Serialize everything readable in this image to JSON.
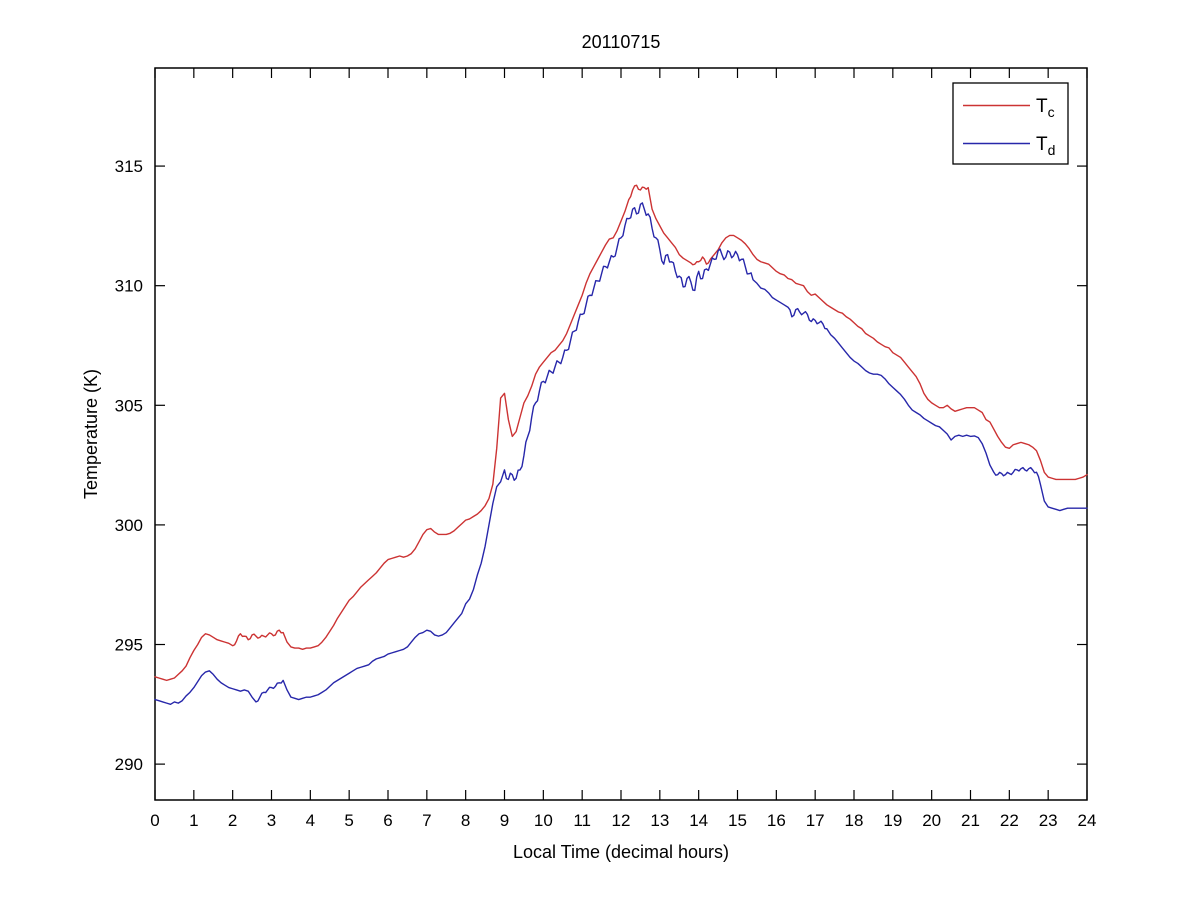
{
  "figure": {
    "background": "#ffffff",
    "axis_color": "#000000"
  },
  "chart_data": {
    "type": "line",
    "title": "20110715",
    "xlabel": "Local Time (decimal hours)",
    "ylabel": "Temperature (K)",
    "xlim": [
      0,
      24
    ],
    "ylim": [
      288.5,
      319.1
    ],
    "x_ticks": [
      0,
      1,
      2,
      3,
      4,
      5,
      6,
      7,
      8,
      9,
      10,
      11,
      12,
      13,
      14,
      15,
      16,
      17,
      18,
      19,
      20,
      21,
      22,
      23,
      24
    ],
    "y_ticks": [
      290,
      295,
      300,
      305,
      310,
      315
    ],
    "grid": false,
    "legend_position": "top-right",
    "legend": {
      "entries": [
        {
          "label_main": "T",
          "label_sub": "c",
          "series": "T_c",
          "color": "#cc3333"
        },
        {
          "label_main": "T",
          "label_sub": "d",
          "series": "T_d",
          "color": "#2727aa"
        }
      ]
    },
    "x_start": 0,
    "x_step": 0.1,
    "series": [
      {
        "name": "T_c",
        "color": "#cc3333",
        "values": [
          293.65,
          293.6,
          293.55,
          293.5,
          293.55,
          293.6,
          293.75,
          293.9,
          294.1,
          294.45,
          294.75,
          295.0,
          295.3,
          295.45,
          295.4,
          295.3,
          295.2,
          295.15,
          295.1,
          295.05,
          294.95,
          295.15,
          295.45,
          295.35,
          295.2,
          295.4,
          295.35,
          295.3,
          295.35,
          295.4,
          295.45,
          295.4,
          295.6,
          295.5,
          295.1,
          294.9,
          294.85,
          294.85,
          294.8,
          294.85,
          294.85,
          294.9,
          294.95,
          295.1,
          295.3,
          295.55,
          295.8,
          296.1,
          296.35,
          296.6,
          296.85,
          297.0,
          297.2,
          297.4,
          297.55,
          297.7,
          297.85,
          298.0,
          298.2,
          298.4,
          298.55,
          298.6,
          298.65,
          298.7,
          298.65,
          298.7,
          298.8,
          299.0,
          299.3,
          299.6,
          299.8,
          299.85,
          299.7,
          299.6,
          299.6,
          299.6,
          299.65,
          299.75,
          299.9,
          300.05,
          300.2,
          300.25,
          300.35,
          300.45,
          300.6,
          300.8,
          301.1,
          301.7,
          303.2,
          305.3,
          305.5,
          304.4,
          303.7,
          303.9,
          304.5,
          305.1,
          305.4,
          305.8,
          306.3,
          306.6,
          306.8,
          307.0,
          307.2,
          307.3,
          307.5,
          307.7,
          308.0,
          308.4,
          308.8,
          309.2,
          309.6,
          310.1,
          310.5,
          310.8,
          311.1,
          311.4,
          311.7,
          311.95,
          312.0,
          312.3,
          312.7,
          313.1,
          313.6,
          314.0,
          314.2,
          314.0,
          314.1,
          314.1,
          313.2,
          312.8,
          312.5,
          312.2,
          312.0,
          311.8,
          311.6,
          311.3,
          311.15,
          311.05,
          310.95,
          310.9,
          311.0,
          311.2,
          310.9,
          311.1,
          311.3,
          311.5,
          311.8,
          312.0,
          312.1,
          312.1,
          312.0,
          311.9,
          311.75,
          311.55,
          311.3,
          311.1,
          311.0,
          310.95,
          310.9,
          310.75,
          310.6,
          310.5,
          310.45,
          310.3,
          310.25,
          310.1,
          310.05,
          310.0,
          309.75,
          309.6,
          309.65,
          309.5,
          309.35,
          309.2,
          309.1,
          309.0,
          308.9,
          308.85,
          308.7,
          308.6,
          308.45,
          308.3,
          308.2,
          308.0,
          307.9,
          307.8,
          307.65,
          307.55,
          307.45,
          307.4,
          307.2,
          307.1,
          307.0,
          306.8,
          306.6,
          306.4,
          306.2,
          305.9,
          305.5,
          305.25,
          305.1,
          305.0,
          304.9,
          304.9,
          305.0,
          304.85,
          304.75,
          304.8,
          304.85,
          304.9,
          304.9,
          304.9,
          304.8,
          304.7,
          304.4,
          304.3,
          304.0,
          303.7,
          303.45,
          303.25,
          303.2,
          303.35,
          303.4,
          303.45,
          303.4,
          303.35,
          303.25,
          303.1,
          302.7,
          302.2,
          302.0,
          301.95,
          301.9,
          301.9,
          301.9,
          301.9,
          301.9,
          301.9,
          301.95,
          302.0,
          302.1
        ]
      },
      {
        "name": "T_d",
        "color": "#2727aa",
        "values": [
          292.7,
          292.65,
          292.6,
          292.55,
          292.5,
          292.6,
          292.55,
          292.65,
          292.85,
          293.0,
          293.2,
          293.45,
          293.7,
          293.85,
          293.9,
          293.75,
          293.55,
          293.4,
          293.3,
          293.2,
          293.15,
          293.1,
          293.05,
          293.1,
          293.05,
          292.8,
          292.6,
          292.8,
          293.0,
          293.1,
          293.2,
          293.25,
          293.4,
          293.5,
          293.1,
          292.8,
          292.75,
          292.7,
          292.75,
          292.8,
          292.8,
          292.85,
          292.9,
          293.0,
          293.1,
          293.25,
          293.4,
          293.5,
          293.6,
          293.7,
          293.8,
          293.9,
          294.0,
          294.05,
          294.1,
          294.15,
          294.3,
          294.4,
          294.45,
          294.5,
          294.6,
          294.65,
          294.7,
          294.75,
          294.8,
          294.9,
          295.1,
          295.3,
          295.45,
          295.5,
          295.6,
          295.55,
          295.4,
          295.35,
          295.4,
          295.5,
          295.7,
          295.9,
          296.1,
          296.3,
          296.7,
          296.9,
          297.3,
          297.9,
          298.4,
          299.1,
          300.0,
          300.9,
          301.6,
          301.8,
          302.3,
          301.9,
          302.1,
          301.95,
          302.3,
          302.9,
          303.7,
          304.5,
          305.1,
          305.6,
          306.0,
          306.2,
          306.4,
          306.6,
          306.8,
          307.0,
          307.3,
          307.7,
          308.1,
          308.5,
          308.8,
          309.2,
          309.6,
          309.9,
          310.2,
          310.5,
          310.8,
          311.0,
          311.2,
          311.6,
          312.0,
          312.5,
          312.8,
          313.2,
          313.0,
          313.4,
          313.2,
          313.0,
          312.4,
          312.0,
          311.5,
          310.9,
          311.3,
          311.0,
          310.6,
          310.4,
          309.95,
          310.3,
          310.15,
          309.8,
          310.6,
          310.3,
          310.7,
          310.9,
          311.1,
          311.45,
          311.3,
          311.2,
          311.4,
          311.25,
          311.3,
          311.1,
          310.8,
          310.5,
          310.25,
          310.1,
          309.9,
          309.85,
          309.7,
          309.5,
          309.4,
          309.3,
          309.2,
          309.1,
          308.7,
          309.0,
          308.9,
          308.85,
          308.8,
          308.5,
          308.55,
          308.45,
          308.4,
          308.2,
          307.95,
          307.8,
          307.6,
          307.4,
          307.2,
          307.0,
          306.85,
          306.75,
          306.6,
          306.45,
          306.35,
          306.3,
          306.3,
          306.25,
          306.1,
          305.9,
          305.75,
          305.6,
          305.45,
          305.25,
          305.0,
          304.8,
          304.7,
          304.6,
          304.45,
          304.35,
          304.25,
          304.15,
          304.1,
          303.95,
          303.8,
          303.55,
          303.7,
          303.75,
          303.7,
          303.75,
          303.7,
          303.72,
          303.65,
          303.4,
          303.0,
          302.5,
          302.2,
          302.1,
          302.15,
          302.1,
          302.15,
          302.2,
          302.3,
          302.35,
          302.3,
          302.35,
          302.3,
          302.2,
          301.7,
          301.0,
          300.75,
          300.7,
          300.65,
          300.6,
          300.65,
          300.7,
          300.7,
          300.7,
          300.7,
          300.7,
          300.7
        ]
      }
    ],
    "noise_segments": [
      {
        "series": "T_c",
        "range": [
          2.0,
          3.3
        ],
        "amplitude": 0.06
      },
      {
        "series": "T_c",
        "range": [
          12.25,
          12.75
        ],
        "amplitude": 0.07
      },
      {
        "series": "T_c",
        "range": [
          13.8,
          14.3
        ],
        "amplitude": 0.05
      },
      {
        "series": "T_d",
        "range": [
          2.6,
          3.3
        ],
        "amplitude": 0.06
      },
      {
        "series": "T_d",
        "range": [
          9.0,
          15.4
        ],
        "amplitude": 0.16
      },
      {
        "series": "T_d",
        "range": [
          16.3,
          17.3
        ],
        "amplitude": 0.09
      },
      {
        "series": "T_d",
        "range": [
          21.6,
          22.8
        ],
        "amplitude": 0.07
      }
    ]
  }
}
